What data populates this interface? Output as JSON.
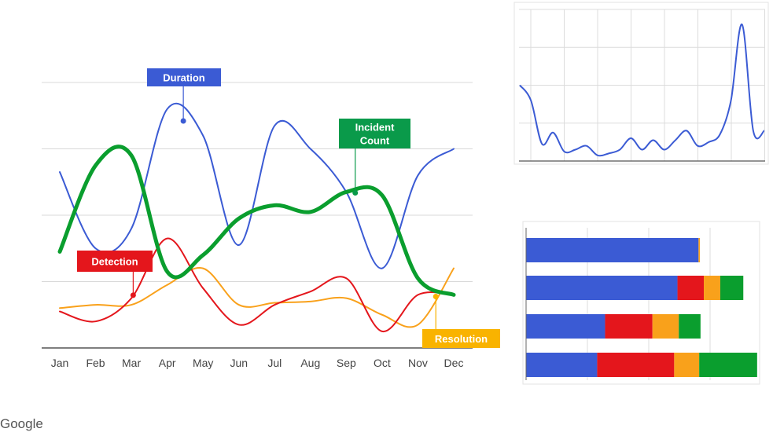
{
  "brand": {
    "text": "Google"
  },
  "colors": {
    "blue": "#3b5bd4",
    "green": "#0a9e2e",
    "red": "#e4161c",
    "orange": "#f9a11b",
    "callout_green": "#0a9a4a",
    "callout_orange": "#f9b300"
  },
  "chart_data": [
    {
      "type": "line",
      "title": "",
      "xlabel": "",
      "ylabel": "",
      "categories": [
        "Jan",
        "Feb",
        "Mar",
        "Apr",
        "May",
        "Jun",
        "Jul",
        "Aug",
        "Sep",
        "Oct",
        "Nov",
        "Dec"
      ],
      "ylim": [
        0,
        4
      ],
      "grid": true,
      "series": [
        {
          "name": "Duration",
          "color": "#3b5bd4",
          "width": 2,
          "values": [
            2.65,
            1.5,
            1.8,
            3.6,
            3.2,
            1.55,
            3.35,
            3.0,
            2.35,
            1.2,
            2.6,
            3.0
          ]
        },
        {
          "name": "Incident Count",
          "color": "#0a9e2e",
          "width": 5,
          "values": [
            1.45,
            2.75,
            2.9,
            1.15,
            1.4,
            1.95,
            2.15,
            2.05,
            2.35,
            2.3,
            1.05,
            0.8
          ]
        },
        {
          "name": "Detection",
          "color": "#e4161c",
          "width": 2,
          "values": [
            0.55,
            0.4,
            0.75,
            1.65,
            0.9,
            0.35,
            0.65,
            0.85,
            1.05,
            0.25,
            0.8,
            0.8
          ]
        },
        {
          "name": "Resolution",
          "color": "#f9a11b",
          "width": 2,
          "values": [
            0.6,
            0.65,
            0.65,
            0.95,
            1.2,
            0.65,
            0.68,
            0.7,
            0.75,
            0.5,
            0.35,
            1.2
          ]
        }
      ],
      "callouts": [
        {
          "series": 0,
          "label": [
            "Duration"
          ]
        },
        {
          "series": 1,
          "label": [
            "Incident",
            "Count"
          ]
        },
        {
          "series": 2,
          "label": [
            "Detection"
          ]
        },
        {
          "series": 3,
          "label": [
            "Resolution"
          ]
        }
      ]
    },
    {
      "type": "line",
      "title": "",
      "ylim": [
        0,
        4
      ],
      "grid": true,
      "series": [
        {
          "color": "#3b5bd4",
          "values": [
            2.0,
            1.6,
            0.45,
            0.75,
            0.25,
            0.3,
            0.4,
            0.15,
            0.2,
            0.3,
            0.6,
            0.3,
            0.55,
            0.3,
            0.55,
            0.8,
            0.4,
            0.5,
            0.7,
            1.6,
            3.6,
            0.8,
            0.8
          ]
        }
      ]
    },
    {
      "type": "bar",
      "orientation": "horizontal",
      "stacked": true,
      "categories": [
        "",
        "",
        "",
        ""
      ],
      "xlim": [
        0,
        350
      ],
      "grid": true,
      "series": [
        {
          "color": "#3b5bd4",
          "values": [
            262,
            230,
            120,
            108
          ]
        },
        {
          "color": "#e4161c",
          "values": [
            0,
            40,
            72,
            117
          ]
        },
        {
          "color": "#f9a11b",
          "values": [
            2,
            25,
            40,
            38
          ]
        },
        {
          "color": "#0a9e2e",
          "values": [
            0,
            35,
            33,
            88
          ]
        }
      ]
    }
  ]
}
